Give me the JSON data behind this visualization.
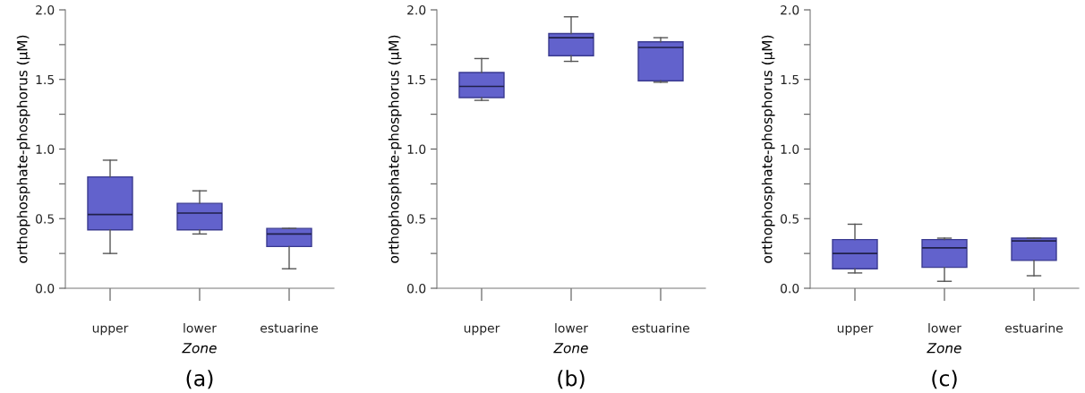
{
  "chart_data": [
    {
      "type": "box",
      "categories": [
        "upper",
        "lower",
        "estuarine"
      ],
      "xlabel": "Zone",
      "ylabel": "orthophosphate-phosphorus (µM)",
      "annotations": [
        "(a)"
      ],
      "color": "#6262cc",
      "ylim": [
        0,
        2.0
      ],
      "yticks": [
        {
          "value": 0,
          "label": "0.0"
        },
        {
          "value": 0.25,
          "label": null
        },
        {
          "value": 0.5,
          "label": "0.5"
        },
        {
          "value": 0.75,
          "label": null
        },
        {
          "value": 1.0,
          "label": "1.0"
        },
        {
          "value": 1.25,
          "label": null
        },
        {
          "value": 1.5,
          "label": "1.5"
        },
        {
          "value": 1.75,
          "label": null
        },
        {
          "value": 2.0,
          "label": "2.0"
        }
      ],
      "grid": false,
      "boxes": [
        {
          "low": 0.25,
          "q1": 0.42,
          "median": 0.53,
          "q3": 0.8,
          "high": 0.92
        },
        {
          "low": 0.39,
          "q1": 0.42,
          "median": 0.54,
          "q3": 0.61,
          "high": 0.7
        },
        {
          "low": 0.14,
          "q1": 0.3,
          "median": 0.39,
          "q3": 0.43,
          "high": 0.43
        }
      ]
    },
    {
      "type": "box",
      "categories": [
        "upper",
        "lower",
        "estuarine"
      ],
      "xlabel": "Zone",
      "ylabel": "orthophosphate-phosphorus (µM)",
      "annotations": [
        "(b)"
      ],
      "color": "#6262cc",
      "ylim": [
        0,
        2.0
      ],
      "yticks": [
        {
          "value": 0,
          "label": "0.0"
        },
        {
          "value": 0.25,
          "label": null
        },
        {
          "value": 0.5,
          "label": "0.5"
        },
        {
          "value": 0.75,
          "label": null
        },
        {
          "value": 1.0,
          "label": "1.0"
        },
        {
          "value": 1.25,
          "label": null
        },
        {
          "value": 1.5,
          "label": "1.5"
        },
        {
          "value": 1.75,
          "label": null
        },
        {
          "value": 2.0,
          "label": "2.0"
        }
      ],
      "grid": false,
      "boxes": [
        {
          "low": 1.35,
          "q1": 1.37,
          "median": 1.45,
          "q3": 1.55,
          "high": 1.65
        },
        {
          "low": 1.63,
          "q1": 1.67,
          "median": 1.8,
          "q3": 1.83,
          "high": 1.95
        },
        {
          "low": 1.48,
          "q1": 1.49,
          "median": 1.73,
          "q3": 1.77,
          "high": 1.8
        }
      ]
    },
    {
      "type": "box",
      "categories": [
        "upper",
        "lower",
        "estuarine"
      ],
      "xlabel": "Zone",
      "ylabel": "orthophosphate-phosphorus (µM)",
      "annotations": [
        "(c)"
      ],
      "color": "#6262cc",
      "ylim": [
        0,
        2.0
      ],
      "yticks": [
        {
          "value": 0,
          "label": "0.0"
        },
        {
          "value": 0.25,
          "label": null
        },
        {
          "value": 0.5,
          "label": "0.5"
        },
        {
          "value": 0.75,
          "label": null
        },
        {
          "value": 1.0,
          "label": "1.0"
        },
        {
          "value": 1.25,
          "label": null
        },
        {
          "value": 1.5,
          "label": "1.5"
        },
        {
          "value": 1.75,
          "label": null
        },
        {
          "value": 2.0,
          "label": "2.0"
        }
      ],
      "grid": false,
      "boxes": [
        {
          "low": 0.11,
          "q1": 0.14,
          "median": 0.25,
          "q3": 0.35,
          "high": 0.46
        },
        {
          "low": 0.05,
          "q1": 0.15,
          "median": 0.29,
          "q3": 0.35,
          "high": 0.36
        },
        {
          "low": 0.09,
          "q1": 0.2,
          "median": 0.34,
          "q3": 0.36,
          "high": 0.36
        }
      ]
    }
  ]
}
